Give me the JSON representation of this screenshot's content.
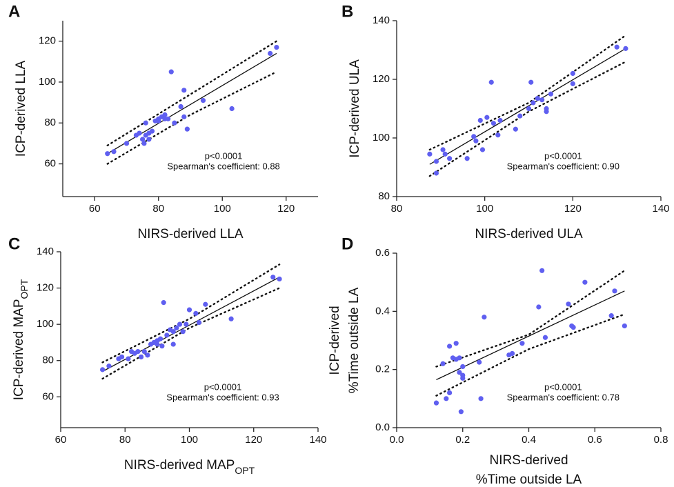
{
  "chart_data": [
    {
      "type": "scatter",
      "panel_label": "A",
      "xlabel": [
        "NIRS-derived LLA"
      ],
      "ylabel": [
        "ICP-derived LLA"
      ],
      "annotations": [
        "p<0.0001",
        "Spearman's coefficient: 0.88"
      ],
      "color": "#5f5ff0",
      "xlim": [
        50,
        130
      ],
      "ylim": [
        44,
        130
      ],
      "xticks": [
        60,
        80,
        100,
        120
      ],
      "yticks": [
        60,
        80,
        100,
        120
      ],
      "x": [
        64,
        66,
        70,
        73,
        74,
        75,
        75.5,
        76,
        76,
        77,
        77,
        78,
        79,
        80,
        80,
        81,
        82,
        82,
        83,
        84,
        85,
        87,
        88,
        88,
        89,
        94,
        103,
        115,
        117
      ],
      "y": [
        65,
        66,
        70,
        74,
        75,
        72,
        70,
        80,
        74,
        72,
        75,
        76,
        81,
        82,
        81,
        83,
        82,
        84,
        82,
        105,
        80,
        88,
        83,
        96,
        77,
        91,
        87,
        114,
        117
      ],
      "fit": {
        "x": [
          64,
          117
        ],
        "y": [
          65,
          114
        ]
      },
      "band_upper": {
        "x": [
          64,
          90,
          117
        ],
        "y": [
          69,
          94,
          120
        ]
      },
      "band_lower": {
        "x": [
          64,
          90,
          117
        ],
        "y": [
          60,
          84,
          105
        ]
      }
    },
    {
      "type": "scatter",
      "panel_label": "B",
      "xlabel": [
        "NIRS-derived ULA"
      ],
      "ylabel": [
        "ICP-derived ULA"
      ],
      "annotations": [
        "p<0.0001",
        "Spearman's coefficient: 0.90"
      ],
      "color": "#5f5ff0",
      "xlim": [
        80,
        140
      ],
      "ylim": [
        80,
        140
      ],
      "xticks": [
        80,
        100,
        120,
        140
      ],
      "yticks": [
        80,
        100,
        120,
        140
      ],
      "x": [
        87.5,
        89,
        89,
        90.5,
        91,
        92,
        96,
        97.5,
        98,
        99,
        99.5,
        100.5,
        101.5,
        102,
        103,
        103.5,
        107,
        108,
        110,
        110.5,
        111,
        112,
        113,
        114,
        114,
        115,
        120,
        120,
        130,
        132
      ],
      "y": [
        94.5,
        92,
        88,
        96,
        94.5,
        93,
        93,
        100.5,
        99,
        106,
        96,
        107,
        119,
        105,
        101,
        106,
        103,
        107.5,
        110,
        119,
        112,
        113.5,
        113,
        109,
        110,
        115,
        122,
        118.5,
        131,
        130.5
      ],
      "fit": {
        "x": [
          87.5,
          132
        ],
        "y": [
          91,
          130.5
        ]
      },
      "band_upper": {
        "x": [
          87.5,
          110,
          132
        ],
        "y": [
          96,
          112,
          135
        ]
      },
      "band_lower": {
        "x": [
          87.5,
          110,
          132
        ],
        "y": [
          87,
          109,
          126
        ]
      }
    },
    {
      "type": "scatter",
      "panel_label": "C",
      "xlabel": [
        "NIRS-derived MAP"
      ],
      "xlabel_sub": "OPT",
      "ylabel": [
        "ICP-derived MAP"
      ],
      "ylabel_sub": "OPT",
      "annotations": [
        "p<0.0001",
        "Spearman's coefficient: 0.93"
      ],
      "color": "#5f5ff0",
      "xlim": [
        60,
        140
      ],
      "ylim": [
        43,
        140
      ],
      "xticks": [
        60,
        80,
        100,
        120,
        140
      ],
      "yticks": [
        60,
        80,
        100,
        120,
        140
      ],
      "x": [
        73,
        75,
        78,
        79,
        81,
        82,
        83,
        84,
        85,
        86,
        87,
        88,
        89,
        90,
        90,
        91,
        91.5,
        92,
        93,
        94,
        95,
        95,
        96,
        97,
        98,
        99,
        100,
        102,
        103,
        105,
        113,
        126,
        128
      ],
      "y": [
        75,
        77,
        81,
        82,
        81,
        85,
        84,
        85,
        82,
        85,
        83,
        89,
        90,
        91,
        89,
        92,
        88,
        112,
        94,
        97,
        96,
        89,
        98,
        100,
        96,
        100,
        108,
        106,
        101,
        111,
        103,
        126,
        125
      ],
      "fit": {
        "x": [
          73,
          128
        ],
        "y": [
          74,
          126
        ]
      },
      "band_upper": {
        "x": [
          73,
          100,
          128
        ],
        "y": [
          79,
          103,
          133
        ]
      },
      "band_lower": {
        "x": [
          73,
          100,
          128
        ],
        "y": [
          70,
          98,
          120
        ]
      }
    },
    {
      "type": "scatter",
      "panel_label": "D",
      "xlabel": [
        "NIRS-derived",
        "%Time outside LA"
      ],
      "ylabel": [
        "ICP-derived",
        "%Time outside  LA"
      ],
      "annotations": [
        "p<0.0001",
        "Spearman's coefficient: 0.78"
      ],
      "color": "#5f5ff0",
      "xlim": [
        0,
        0.8
      ],
      "ylim": [
        0,
        0.6
      ],
      "xticks": [
        {
          "value": 0,
          "label": "0.0"
        },
        0.2,
        0.4,
        0.6,
        0.8
      ],
      "yticks": [
        {
          "value": 0,
          "label": "0.0"
        },
        0.2,
        0.4,
        0.6
      ],
      "x": [
        0.12,
        0.14,
        0.15,
        0.16,
        0.16,
        0.17,
        0.18,
        0.18,
        0.19,
        0.19,
        0.195,
        0.2,
        0.2,
        0.2,
        0.25,
        0.255,
        0.265,
        0.34,
        0.35,
        0.38,
        0.43,
        0.44,
        0.45,
        0.52,
        0.53,
        0.535,
        0.57,
        0.65,
        0.66,
        0.69
      ],
      "y": [
        0.085,
        0.22,
        0.1,
        0.12,
        0.28,
        0.24,
        0.29,
        0.235,
        0.24,
        0.19,
        0.055,
        0.21,
        0.17,
        0.18,
        0.225,
        0.1,
        0.38,
        0.25,
        0.255,
        0.29,
        0.415,
        0.54,
        0.31,
        0.425,
        0.35,
        0.345,
        0.5,
        0.385,
        0.47,
        0.35
      ],
      "fit": {
        "x": [
          0.12,
          0.69
        ],
        "y": [
          0.165,
          0.47
        ]
      },
      "band_upper": {
        "x": [
          0.12,
          0.4,
          0.69
        ],
        "y": [
          0.21,
          0.32,
          0.54
        ]
      },
      "band_lower": {
        "x": [
          0.12,
          0.4,
          0.69
        ],
        "y": [
          0.11,
          0.27,
          0.39
        ]
      }
    }
  ]
}
